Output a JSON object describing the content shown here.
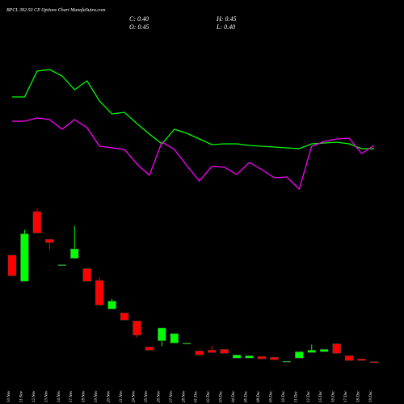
{
  "chart_data": {
    "type": "candlestick",
    "title": "BPCL 392.50 CE Options Chart MunafaSutra.com",
    "info": [
      "C: 0.40",
      "H: 0.45",
      "O: 0.45",
      "L: 0.40"
    ],
    "categories": [
      "10 Nov",
      "11 Nov",
      "12 Nov",
      "13 Nov",
      "14 Nov",
      "17 Nov",
      "18 Nov",
      "19 Nov",
      "20 Nov",
      "21 Nov",
      "24 Nov",
      "25 Nov",
      "26 Nov",
      "27 Nov",
      "28 Nov",
      "01 Dec",
      "02 Dec",
      "03 Dec",
      "04 Dec",
      "05 Dec",
      "08 Dec",
      "09 Dec",
      "10 Dec",
      "11 Dec",
      "12 Dec",
      "15 Dec",
      "16 Dec",
      "17 Dec",
      "18 Dec",
      "19 Dec"
    ],
    "open": [
      13.9,
      10.6,
      19.4,
      15.9,
      12.7,
      13.5,
      12.2,
      10.7,
      7.1,
      6.6,
      5.6,
      2.3,
      3.1,
      2.8,
      2.7,
      1.8,
      1.9,
      2.0,
      0.9,
      0.9,
      1.1,
      1.0,
      0.5,
      0.9,
      1.6,
      1.7,
      2.7,
      1.2,
      0.8,
      0.45
    ],
    "high": [
      13.9,
      17.1,
      19.8,
      15.9,
      12.7,
      17.6,
      12.2,
      11.1,
      8.4,
      6.6,
      5.6,
      2.3,
      4.7,
      4.0,
      2.8,
      1.8,
      2.4,
      2.0,
      1.3,
      1.2,
      1.1,
      1.0,
      0.5,
      1.7,
      2.6,
      2.0,
      2.7,
      1.2,
      0.8,
      0.45
    ],
    "low": [
      11.3,
      10.6,
      16.7,
      14.6,
      12.7,
      13.5,
      10.6,
      7.6,
      7.1,
      5.7,
      3.5,
      1.9,
      2.4,
      2.8,
      2.7,
      1.3,
      1.6,
      1.5,
      0.9,
      0.9,
      0.8,
      0.6,
      0.5,
      0.9,
      1.6,
      1.7,
      1.5,
      0.6,
      0.6,
      0.4
    ],
    "close": [
      11.3,
      16.6,
      16.7,
      15.5,
      12.7,
      14.7,
      10.6,
      7.6,
      8.1,
      5.7,
      3.8,
      1.9,
      4.7,
      4.0,
      2.8,
      1.3,
      1.6,
      1.5,
      1.3,
      1.2,
      0.8,
      0.7,
      0.5,
      1.7,
      1.9,
      2.0,
      1.5,
      0.6,
      0.6,
      0.4
    ],
    "ylim": [
      0,
      19.8
    ],
    "up_color": "#00ff00",
    "down_color": "#ff0000",
    "series": [
      {
        "color": "#00ff00",
        "values": [
          180,
          180,
          212,
          214,
          206,
          189,
          200,
          175,
          159,
          161,
          147,
          134,
          122,
          140,
          135,
          128,
          121,
          122,
          122,
          120,
          119,
          118,
          117,
          116,
          122,
          123,
          124,
          122,
          116,
          116
        ]
      },
      {
        "color": "#ff00ff",
        "values": [
          150,
          150,
          154,
          152,
          140,
          152,
          142,
          119,
          117,
          115,
          97,
          83,
          124,
          115,
          95,
          76,
          94,
          93,
          84,
          99,
          90,
          80,
          81,
          66,
          119,
          125,
          128,
          129,
          110,
          120
        ]
      }
    ],
    "y2lim": [
      0,
      300
    ]
  }
}
